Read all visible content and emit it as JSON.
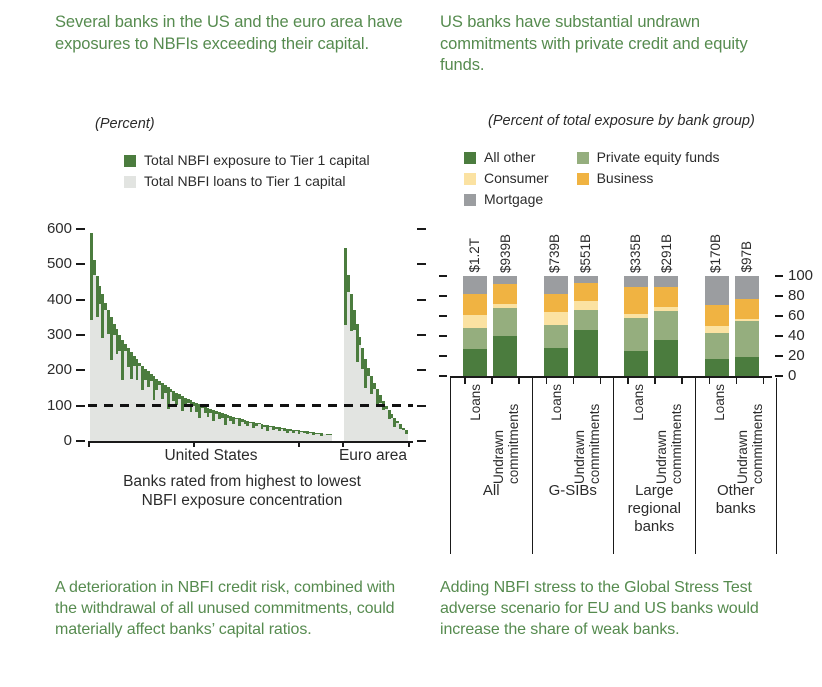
{
  "colors": {
    "title_green": "#568b4f",
    "text_dark": "#2b2b2b",
    "axis": "#1a1a1a",
    "exposure_green": "#4b7c3e",
    "loans_gray": "#e2e4e1",
    "segments": {
      "All other": "#4b7c3e",
      "Private equity funds": "#95ae7e",
      "Consumer": "#fbe2a2",
      "Business": "#f0b342",
      "Mortgage": "#9b9da0"
    }
  },
  "panels": {
    "left": {
      "title": "Several banks in the US and the euro area have exposures to NBFIs exceeding their capital.",
      "subtitle": "(Percent)",
      "legend": [
        {
          "label": "Total NBFI exposure to Tier 1 capital",
          "color_key": "exposure_green"
        },
        {
          "label": "Total NBFI loans to Tier 1 capital",
          "color_key": "loans_gray"
        }
      ],
      "xlabel_us": "United States",
      "xlabel_eu": "Euro area",
      "caption_line1": "Banks rated from highest to lowest",
      "caption_line2": "NBFI exposure concentration",
      "footer": "A deterioration in NBFI credit risk, combined with the withdrawal of all unused commitments, could materially affect banks’ capital ratios."
    },
    "right": {
      "title": "US banks have substantial undrawn commitments with private credit and equity funds.",
      "subtitle": "(Percent of total exposure by bank group)",
      "legend_col1": [
        {
          "label": "All other",
          "color_key": "All other"
        },
        {
          "label": "Consumer",
          "color_key": "Consumer"
        },
        {
          "label": "Mortgage",
          "color_key": "Mortgage"
        }
      ],
      "legend_col2": [
        {
          "label": "Private equity funds",
          "color_key": "Private equity funds"
        },
        {
          "label": "Business",
          "color_key": "Business"
        }
      ],
      "footer": "Adding NBFI stress to the Global Stress Test adverse scenario for EU and US banks would increase the share of weak banks."
    }
  },
  "chart_data": [
    {
      "type": "bar",
      "title": "Total NBFI exposure and loans to Tier 1 capital",
      "ylabel": "Percent",
      "xlabel": "Banks rated from highest to lowest NBFI exposure concentration",
      "ylim": [
        0,
        600
      ],
      "yticks": [
        0,
        100,
        200,
        300,
        400,
        500,
        600
      ],
      "reference_line": 100,
      "grid": false,
      "series_names": [
        "Total NBFI exposure to Tier 1 capital",
        "Total NBFI loans to Tier 1 capital"
      ],
      "groups": [
        {
          "label": "United States",
          "exposure": [
            590,
            512,
            468,
            440,
            415,
            392,
            370,
            350,
            332,
            316,
            301,
            287,
            274,
            262,
            251,
            241,
            231,
            222,
            213,
            205,
            197,
            190,
            183,
            176,
            170,
            164,
            158,
            152,
            147,
            142,
            137,
            132,
            128,
            123,
            119,
            115,
            111,
            107,
            104,
            100,
            97,
            93,
            90,
            87,
            84,
            81,
            78,
            76,
            73,
            71,
            68,
            66,
            64,
            61,
            59,
            57,
            55,
            53,
            51,
            50,
            48,
            46,
            45,
            43,
            42,
            40,
            39,
            37,
            36,
            35,
            33,
            32,
            31,
            30,
            29,
            28,
            27,
            26,
            25,
            24,
            23,
            22,
            21,
            21,
            20
          ],
          "loans": [
            342,
            471,
            351,
            387,
            291,
            372,
            303,
            228,
            299,
            246,
            256,
            172,
            255,
            210,
            176,
            212,
            173,
            211,
            145,
            174,
            154,
            171,
            117,
            144,
            158,
            118,
            136,
            91,
            140,
            114,
            101,
            119,
            84,
            103,
            109,
            81,
            98,
            83,
            64,
            94,
            79,
            68,
            80,
            58,
            77,
            62,
            66,
            44,
            66,
            56,
            48,
            61,
            42,
            53,
            47,
            42,
            50,
            37,
            42,
            48,
            35,
            40,
            28,
            39,
            32,
            34,
            27,
            34,
            29,
            23,
            29,
            24,
            29,
            20,
            25,
            22,
            19,
            23,
            16,
            21,
            19,
            15,
            19,
            16,
            17
          ]
        },
        {
          "label": "Euro area",
          "exposure": [
            545,
            470,
            415,
            370,
            330,
            295,
            262,
            233,
            208,
            185,
            164,
            146,
            129,
            114,
            100,
            88,
            76,
            66,
            56,
            47,
            38,
            30
          ],
          "loans": [
            327,
            423,
            311,
            315,
            224,
            271,
            204,
            149,
            183,
            133,
            148,
            96,
            108,
            87,
            92,
            62,
            65,
            41,
            50,
            35,
            32,
            20
          ]
        }
      ]
    },
    {
      "type": "stacked-bar",
      "title": "US bank credit exposures to private credit and equity funds",
      "ylabel": "Percent of total exposure by bank group",
      "ylim": [
        0,
        100
      ],
      "yticks": [
        0,
        20,
        40,
        60,
        80,
        100
      ],
      "grid": false,
      "stack_order": [
        "All other",
        "Private equity funds",
        "Consumer",
        "Business",
        "Mortgage"
      ],
      "legend": [
        "All other",
        "Consumer",
        "Mortgage",
        "Private equity funds",
        "Business"
      ],
      "groups": [
        {
          "label": "All",
          "bars": [
            {
              "label": "Loans",
              "total": "$1.2T",
              "values": {
                "All other": 27,
                "Private equity funds": 21,
                "Consumer": 13,
                "Business": 21,
                "Mortgage": 18
              }
            },
            {
              "label": "Undrawn commitments",
              "total": "$939B",
              "values": {
                "All other": 40,
                "Private equity funds": 28,
                "Consumer": 4,
                "Business": 20,
                "Mortgage": 8
              }
            }
          ]
        },
        {
          "label": "G-SIBs",
          "bars": [
            {
              "label": "Loans",
              "total": "$739B",
              "values": {
                "All other": 28,
                "Private equity funds": 23,
                "Consumer": 13,
                "Business": 18,
                "Mortgage": 18
              }
            },
            {
              "label": "Undrawn commitments",
              "total": "$551B",
              "values": {
                "All other": 46,
                "Private equity funds": 20,
                "Consumer": 9,
                "Business": 18,
                "Mortgage": 7
              }
            }
          ]
        },
        {
          "label": "Large regional banks",
          "bars": [
            {
              "label": "Loans",
              "total": "$335B",
              "values": {
                "All other": 25,
                "Private equity funds": 33,
                "Consumer": 4,
                "Business": 27,
                "Mortgage": 11
              }
            },
            {
              "label": "Undrawn commitments",
              "total": "$291B",
              "values": {
                "All other": 36,
                "Private equity funds": 29,
                "Consumer": 4,
                "Business": 20,
                "Mortgage": 11
              }
            }
          ]
        },
        {
          "label": "Other banks",
          "bars": [
            {
              "label": "Loans",
              "total": "$170B",
              "values": {
                "All other": 17,
                "Private equity funds": 26,
                "Consumer": 7,
                "Business": 21,
                "Mortgage": 29
              }
            },
            {
              "label": "Undrawn commitments",
              "total": "$97B",
              "values": {
                "All other": 19,
                "Private equity funds": 36,
                "Consumer": 2,
                "Business": 20,
                "Mortgage": 23
              }
            }
          ]
        }
      ]
    }
  ]
}
